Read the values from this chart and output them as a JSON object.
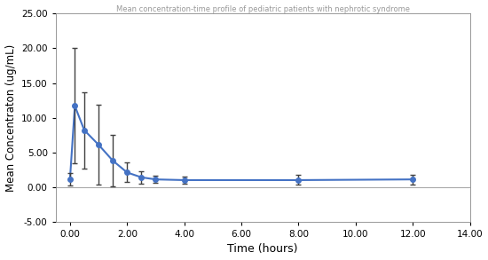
{
  "title": "Mean concentration-time profile of pediatric patients with nephrotic syndrome",
  "xlabel": "Time (hours)",
  "ylabel": "Mean Concentraton (ug/mL)",
  "time": [
    0,
    0.17,
    0.5,
    1.0,
    1.5,
    2.0,
    2.5,
    3.0,
    4.0,
    8.0,
    12.0
  ],
  "mean": [
    1.1,
    11.7,
    8.2,
    6.1,
    3.8,
    2.1,
    1.4,
    1.1,
    1.0,
    1.0,
    1.1
  ],
  "sd": [
    0.9,
    8.3,
    5.5,
    5.8,
    3.7,
    1.4,
    0.9,
    0.5,
    0.5,
    0.7,
    0.7
  ],
  "line_color": "#4472C4",
  "error_color": "#404040",
  "marker": "o",
  "marker_size": 4,
  "xlim": [
    -0.5,
    14.0
  ],
  "ylim": [
    -5.0,
    25.0
  ],
  "xticks": [
    0.0,
    2.0,
    4.0,
    6.0,
    8.0,
    10.0,
    12.0,
    14.0
  ],
  "yticks": [
    -5.0,
    0.0,
    5.0,
    10.0,
    15.0,
    20.0,
    25.0
  ],
  "hline_y": 0.0,
  "hline_color": "#AAAAAA",
  "background_color": "#FFFFFF"
}
